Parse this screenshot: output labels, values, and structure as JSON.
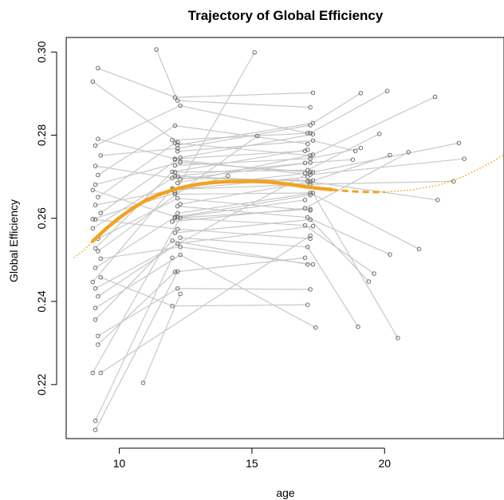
{
  "chart_data": {
    "type": "scatter",
    "title": "Trajectory of Global Efficiency",
    "xlabel": "age",
    "ylabel": "Global Efficiency",
    "xlim": [
      8.0,
      24.5
    ],
    "ylim": [
      0.207,
      0.3035
    ],
    "x_ticks": [
      10,
      15,
      20
    ],
    "y_ticks": [
      0.22,
      0.24,
      0.26,
      0.28,
      0.3
    ],
    "x_tick_labels": [
      "10",
      "15",
      "20"
    ],
    "y_tick_labels": [
      "0.22",
      "0.24",
      "0.26",
      "0.28",
      "0.30"
    ],
    "grid": false,
    "legend": "none",
    "colors": {
      "trajectory_lines": "#c8c8c8",
      "points": "#6e6e6e",
      "fit_curve": "#f2a31f"
    },
    "series": [
      {
        "kind": "individual-trajectories",
        "trajectories": [
          [
            [
              9.1,
              0.2091
            ],
            [
              12.2,
              0.2472
            ]
          ],
          [
            [
              9.1,
              0.2113
            ],
            [
              12.0,
              0.2505
            ]
          ],
          [
            [
              9.0,
              0.2228
            ],
            [
              12.3,
              0.2601
            ],
            [
              17.2,
              0.2622
            ]
          ],
          [
            [
              9.3,
              0.2228
            ],
            [
              17.2,
              0.2558
            ]
          ],
          [
            [
              9.2,
              0.2296
            ],
            [
              12.1,
              0.2471
            ],
            [
              17.0,
              0.2505
            ]
          ],
          [
            [
              10.9,
              0.2204
            ],
            [
              12.3,
              0.2418
            ]
          ],
          [
            [
              9.1,
              0.2356
            ],
            [
              12.0,
              0.2546
            ],
            [
              17.1,
              0.2489
            ]
          ],
          [
            [
              9.2,
              0.2412
            ],
            [
              12.2,
              0.2539
            ],
            [
              17.3,
              0.2581
            ]
          ],
          [
            [
              9.0,
              0.2447
            ],
            [
              12.0,
              0.2672
            ],
            [
              17.0,
              0.2708
            ]
          ],
          [
            [
              9.1,
              0.2481
            ],
            [
              12.1,
              0.2603
            ],
            [
              17.2,
              0.2656
            ]
          ],
          [
            [
              9.3,
              0.2503
            ],
            [
              12.3,
              0.2531
            ],
            [
              17.3,
              0.2489
            ]
          ],
          [
            [
              9.1,
              0.2528
            ],
            [
              12.0,
              0.2712
            ],
            [
              17.1,
              0.2765
            ]
          ],
          [
            [
              9.2,
              0.2551
            ],
            [
              12.2,
              0.2648
            ],
            [
              17.2,
              0.2619
            ]
          ],
          [
            [
              9.0,
              0.2576
            ],
            [
              12.1,
              0.2701
            ],
            [
              17.0,
              0.2733
            ]
          ],
          [
            [
              9.1,
              0.2597
            ],
            [
              12.2,
              0.2574
            ],
            [
              17.2,
              0.2551
            ]
          ],
          [
            [
              9.3,
              0.2613
            ],
            [
              12.3,
              0.2746
            ],
            [
              17.3,
              0.2802
            ]
          ],
          [
            [
              9.1,
              0.2632
            ],
            [
              12.0,
              0.2668
            ],
            [
              17.1,
              0.2699
            ]
          ],
          [
            [
              9.2,
              0.2651
            ],
            [
              12.1,
              0.2781
            ],
            [
              17.2,
              0.2751
            ]
          ],
          [
            [
              9.0,
              0.2668
            ],
            [
              12.2,
              0.2602
            ],
            [
              17.0,
              0.2644
            ]
          ],
          [
            [
              9.1,
              0.2681
            ],
            [
              12.3,
              0.2735
            ],
            [
              17.2,
              0.2711
            ]
          ],
          [
            [
              9.2,
              0.2704
            ],
            [
              12.1,
              0.2823
            ],
            [
              17.1,
              0.2779
            ]
          ],
          [
            [
              9.1,
              0.2726
            ],
            [
              12.0,
              0.2697
            ],
            [
              17.3,
              0.2691
            ]
          ],
          [
            [
              9.3,
              0.2751
            ],
            [
              12.2,
              0.2768
            ],
            [
              17.2,
              0.2824
            ]
          ],
          [
            [
              9.1,
              0.2775
            ],
            [
              12.3,
              0.2871
            ],
            [
              17.1,
              0.2805
            ]
          ],
          [
            [
              9.2,
              0.2791
            ],
            [
              12.1,
              0.2743
            ],
            [
              17.0,
              0.2762
            ]
          ],
          [
            [
              9.0,
              0.2929
            ],
            [
              12.2,
              0.2783
            ]
          ],
          [
            [
              9.2,
              0.2961
            ],
            [
              12.1,
              0.2891
            ],
            [
              17.3,
              0.2902
            ]
          ],
          [
            [
              9.1,
              0.2431
            ],
            [
              17.2,
              0.2711
            ]
          ],
          [
            [
              9.2,
              0.2521
            ],
            [
              15.2,
              0.2798
            ]
          ],
          [
            [
              9.0,
              0.2598
            ],
            [
              14.1,
              0.2702
            ]
          ],
          [
            [
              11.4,
              0.3006
            ],
            [
              12.2,
              0.2883
            ],
            [
              17.2,
              0.2867
            ]
          ],
          [
            [
              12.1,
              0.2662
            ],
            [
              15.1,
              0.2999
            ]
          ],
          [
            [
              9.1,
              0.2384
            ],
            [
              12.3,
              0.2512
            ],
            [
              17.4,
              0.2337
            ]
          ],
          [
            [
              9.2,
              0.2317
            ],
            [
              12.2,
              0.2431
            ],
            [
              17.2,
              0.2429
            ]
          ],
          [
            [
              9.3,
              0.2458
            ],
            [
              12.0,
              0.2389
            ],
            [
              17.1,
              0.2392
            ]
          ],
          [
            [
              12.1,
              0.2565
            ],
            [
              17.2,
              0.2597
            ],
            [
              19.4,
              0.2448
            ]
          ],
          [
            [
              12.2,
              0.2612
            ],
            [
              17.3,
              0.2661
            ],
            [
              20.5,
              0.2312
            ]
          ],
          [
            [
              12.3,
              0.2553
            ],
            [
              17.1,
              0.2531
            ],
            [
              19.0,
              0.2339
            ]
          ],
          [
            [
              12.1,
              0.2727
            ],
            [
              17.2,
              0.2744
            ],
            [
              19.1,
              0.2769
            ]
          ],
          [
            [
              12.2,
              0.2776
            ],
            [
              17.3,
              0.2829
            ],
            [
              19.1,
              0.2901
            ]
          ],
          [
            [
              12.0,
              0.2788
            ],
            [
              17.2,
              0.2805
            ],
            [
              20.1,
              0.2906
            ]
          ],
          [
            [
              12.1,
              0.2711
            ],
            [
              17.1,
              0.2716
            ],
            [
              19.8,
              0.2803
            ]
          ],
          [
            [
              12.3,
              0.2634
            ],
            [
              17.2,
              0.2688
            ],
            [
              20.2,
              0.2752
            ]
          ],
          [
            [
              12.2,
              0.2685
            ],
            [
              17.3,
              0.2753
            ],
            [
              21.9,
              0.2892
            ]
          ],
          [
            [
              12.0,
              0.2592
            ],
            [
              17.0,
              0.2624
            ],
            [
              20.9,
              0.2759
            ]
          ],
          [
            [
              12.1,
              0.2658
            ],
            [
              17.2,
              0.2661
            ],
            [
              21.3,
              0.2526
            ]
          ],
          [
            [
              12.2,
              0.2701
            ],
            [
              17.1,
              0.2689
            ],
            [
              22.0,
              0.2644
            ]
          ],
          [
            [
              12.3,
              0.2735
            ],
            [
              17.3,
              0.2711
            ],
            [
              22.8,
              0.2781
            ]
          ],
          [
            [
              12.1,
              0.2741
            ],
            [
              17.2,
              0.2705
            ],
            [
              23.0,
              0.2743
            ]
          ],
          [
            [
              12.0,
              0.2669
            ],
            [
              17.2,
              0.2682
            ],
            [
              22.6,
              0.2689
            ]
          ],
          [
            [
              12.2,
              0.2629
            ],
            [
              17.1,
              0.2602
            ],
            [
              20.2,
              0.2513
            ]
          ],
          [
            [
              12.1,
              0.2601
            ],
            [
              17.0,
              0.2583
            ],
            [
              19.6,
              0.2467
            ]
          ],
          [
            [
              12.3,
              0.2694
            ],
            [
              17.2,
              0.2734
            ],
            [
              18.8,
              0.2741
            ]
          ],
          [
            [
              12.2,
              0.2761
            ],
            [
              17.3,
              0.2787
            ],
            [
              18.9,
              0.2762
            ]
          ]
        ]
      },
      {
        "kind": "fitted-curve",
        "solid": [
          [
            9.0,
            0.2545
          ],
          [
            9.5,
            0.2575
          ],
          [
            10.0,
            0.2601
          ],
          [
            10.5,
            0.2624
          ],
          [
            11.0,
            0.2643
          ],
          [
            11.5,
            0.2657
          ],
          [
            12.0,
            0.2668
          ],
          [
            12.5,
            0.2676
          ],
          [
            13.0,
            0.2682
          ],
          [
            13.5,
            0.2686
          ],
          [
            14.0,
            0.2688
          ],
          [
            14.5,
            0.2689
          ],
          [
            15.0,
            0.2689
          ],
          [
            15.5,
            0.2688
          ],
          [
            16.0,
            0.2685
          ],
          [
            16.5,
            0.2681
          ],
          [
            17.0,
            0.2676
          ],
          [
            17.5,
            0.2672
          ],
          [
            18.0,
            0.2669
          ]
        ],
        "dashed": [
          [
            18.0,
            0.2669
          ],
          [
            18.5,
            0.2666
          ],
          [
            19.0,
            0.2664
          ],
          [
            19.5,
            0.2663
          ],
          [
            20.0,
            0.2663
          ]
        ],
        "dotted": [
          [
            8.3,
            0.2505
          ],
          [
            8.7,
            0.2525
          ],
          [
            9.0,
            0.2545
          ],
          [
            20.0,
            0.2663
          ],
          [
            21.0,
            0.2668
          ],
          [
            22.0,
            0.2679
          ],
          [
            23.0,
            0.2701
          ],
          [
            24.0,
            0.2734
          ],
          [
            24.5,
            0.2753
          ]
        ]
      }
    ]
  }
}
